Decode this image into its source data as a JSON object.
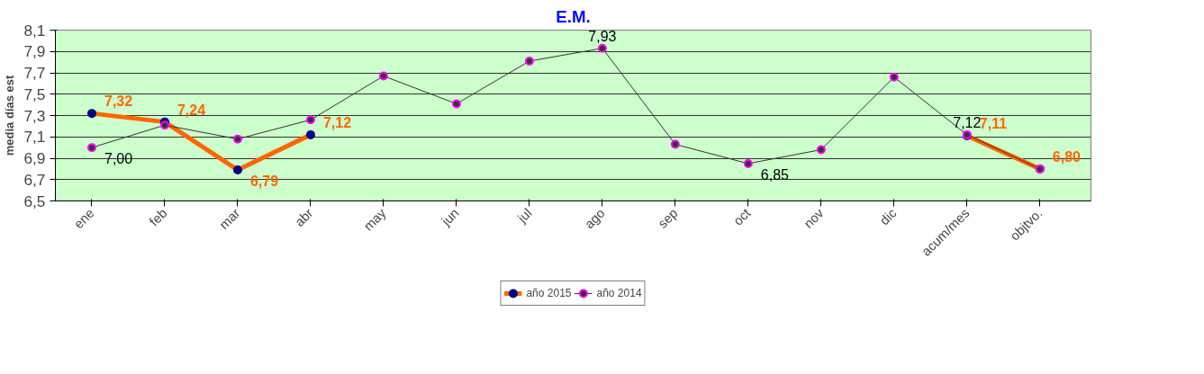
{
  "chart_data": {
    "type": "line",
    "title": "E.M.",
    "ylabel": "media días est",
    "categories": [
      "ene",
      "feb",
      "mar",
      "abr",
      "may",
      "jun",
      "jul",
      "ago",
      "sep",
      "oct",
      "nov",
      "dic",
      "acum/mes",
      "objtvo."
    ],
    "series": [
      {
        "name": "año 2015",
        "color": "#ff6600",
        "values": [
          7.32,
          7.24,
          6.79,
          7.12,
          null,
          null,
          null,
          null,
          null,
          null,
          null,
          null,
          7.11,
          6.8
        ],
        "value_labels": [
          "7,32",
          "7,24",
          "6,79",
          "7,12",
          null,
          null,
          null,
          null,
          null,
          null,
          null,
          null,
          "7,11",
          "6,80"
        ]
      },
      {
        "name": "año 2014",
        "color": "#333333",
        "values": [
          7.0,
          7.21,
          7.08,
          7.26,
          7.67,
          7.41,
          7.81,
          7.93,
          7.03,
          6.85,
          6.98,
          7.66,
          7.12,
          6.8
        ],
        "value_labels": [
          "7,00",
          null,
          null,
          null,
          null,
          null,
          null,
          "7,93",
          null,
          "6,85",
          null,
          null,
          "7,12",
          null
        ]
      }
    ],
    "ylim": [
      6.5,
      8.1
    ],
    "yticks": [
      {
        "value": 6.5,
        "label": "6,5"
      },
      {
        "value": 6.7,
        "label": "6,7"
      },
      {
        "value": 6.9,
        "label": "6,9"
      },
      {
        "value": 7.1,
        "label": "7,1"
      },
      {
        "value": 7.3,
        "label": "7,3"
      },
      {
        "value": 7.5,
        "label": "7,5"
      },
      {
        "value": 7.7,
        "label": "7,7"
      },
      {
        "value": 7.9,
        "label": "7,9"
      },
      {
        "value": 8.1,
        "label": "8,1"
      }
    ],
    "grid": "y",
    "legend": "bottom",
    "marker": "circle"
  }
}
